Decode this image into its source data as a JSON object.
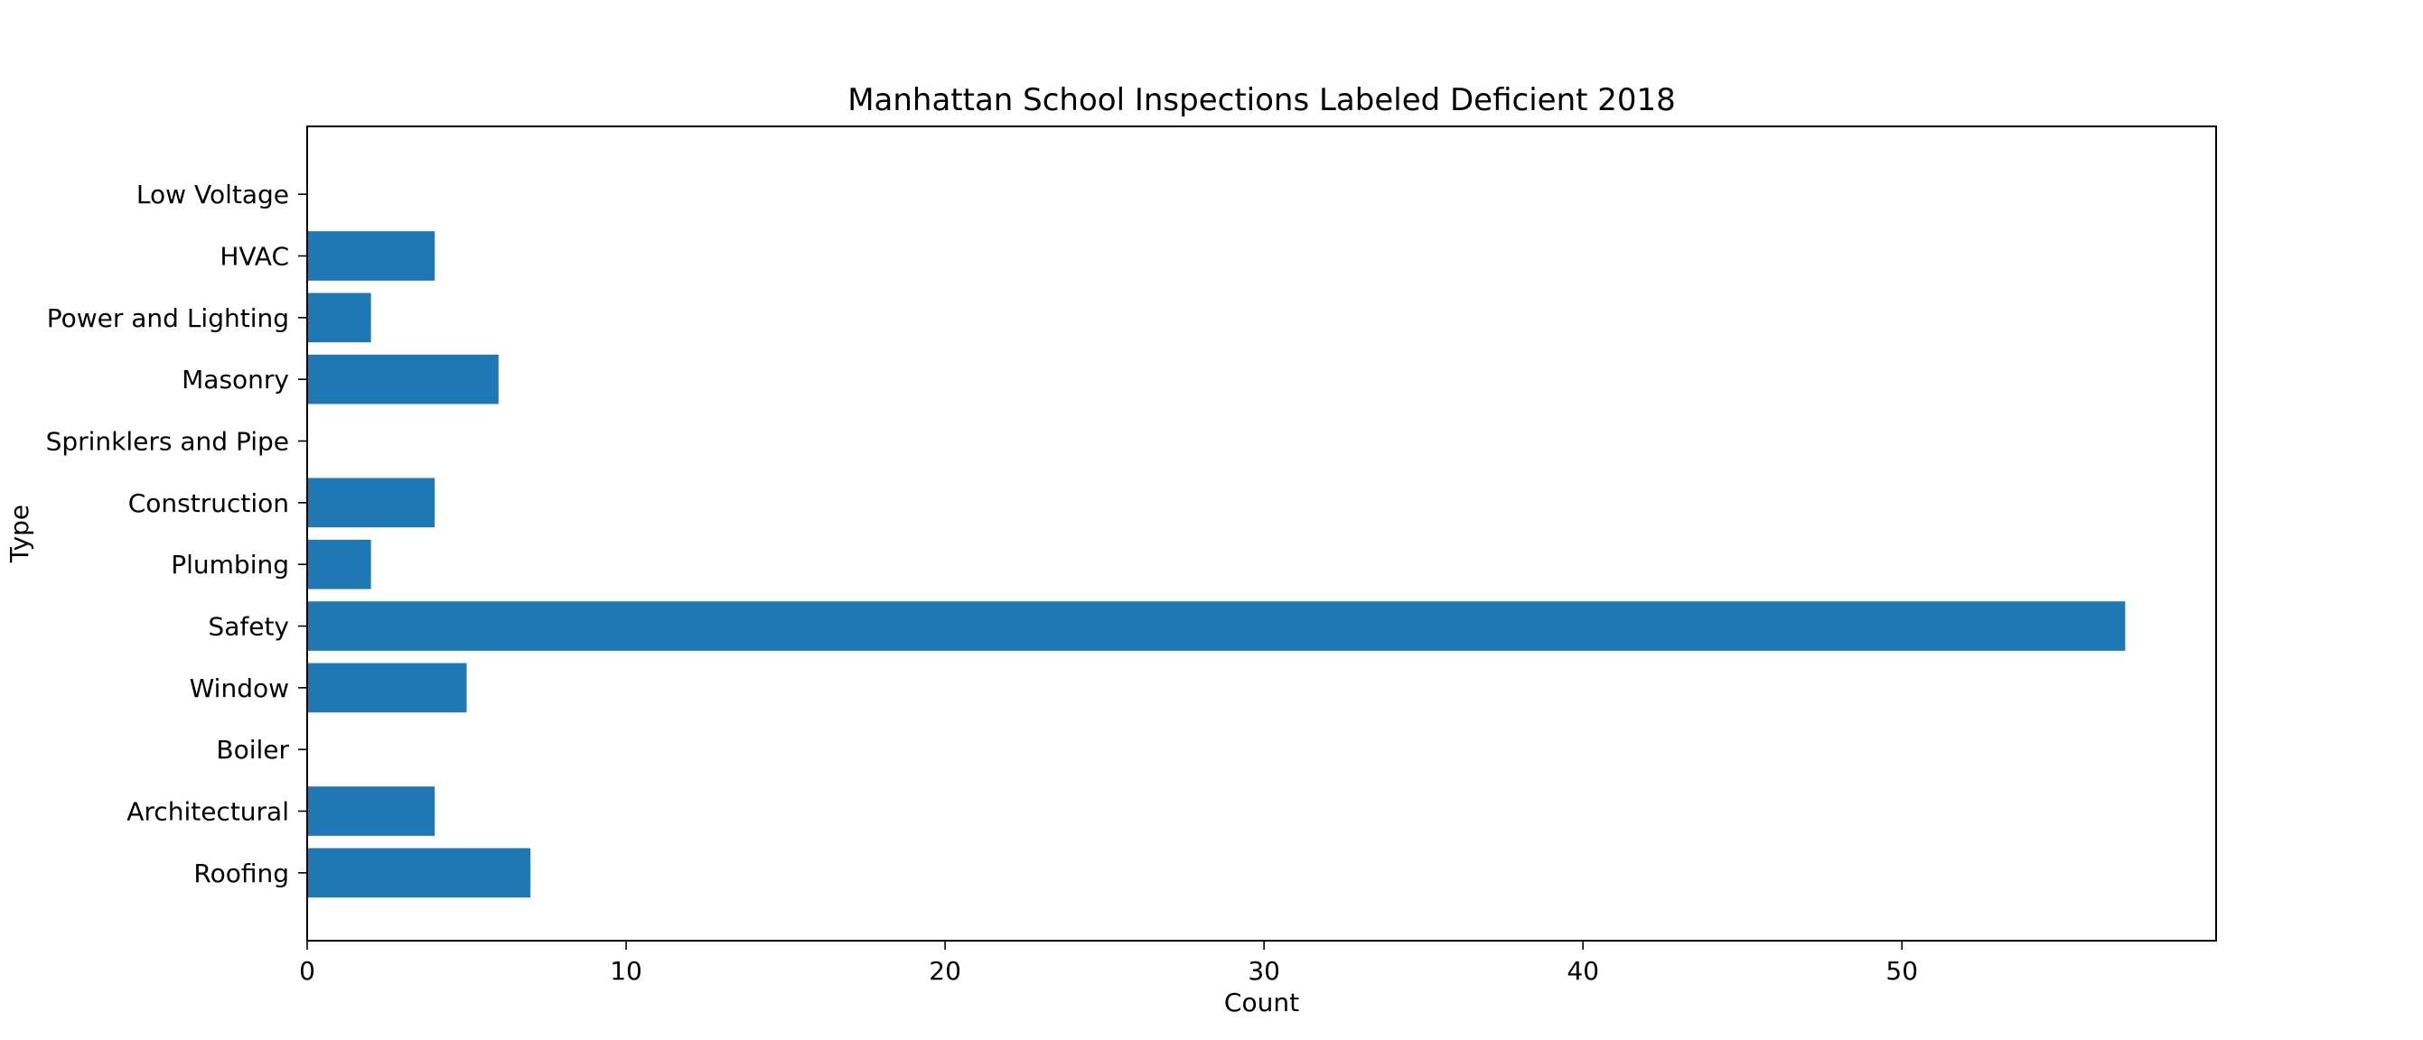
{
  "chart_data": {
    "type": "bar",
    "orientation": "horizontal",
    "title": "Manhattan School Inspections Labeled Deficient 2018",
    "xlabel": "Count",
    "ylabel": "Type",
    "categories": [
      "Roofing",
      "Architectural",
      "Boiler",
      "Window",
      "Safety",
      "Plumbing",
      "Construction",
      "Sprinklers and Pipe",
      "Masonry",
      "Power and Lighting",
      "HVAC",
      "Low Voltage"
    ],
    "values": [
      7,
      4,
      0,
      5,
      57,
      2,
      4,
      0,
      6,
      2,
      4,
      0
    ],
    "xlim": [
      0,
      59.85
    ],
    "xticks": [
      0,
      10,
      20,
      30,
      40,
      50
    ],
    "bar_color": "#1f77b4",
    "grid": false,
    "legend": "none"
  }
}
